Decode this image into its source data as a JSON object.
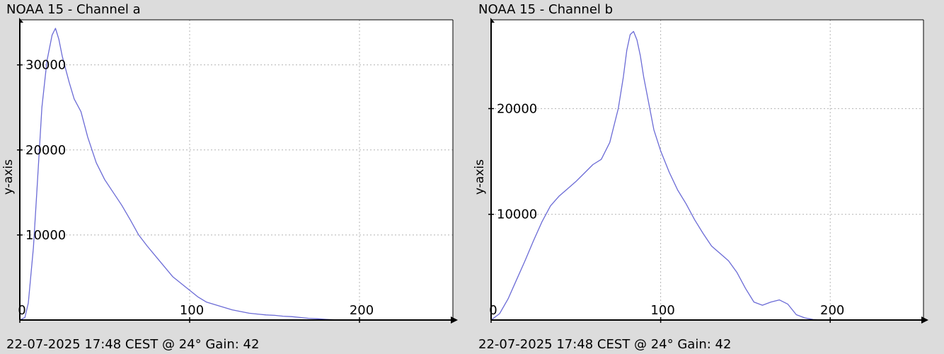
{
  "colors": {
    "background": "#dcdcdc",
    "plot_background": "#ffffff",
    "series": "#6b6bd6",
    "grid": "#b4b4b4",
    "axis": "#000000"
  },
  "chart_data": [
    {
      "type": "line",
      "title": "NOAA 15 - Channel a",
      "footer": "22-07-2025 17:48 CEST @ 24° Gain: 42",
      "ylabel": "y-axis",
      "xlabel": "",
      "xlim": [
        0,
        255
      ],
      "ylim": [
        0,
        35300
      ],
      "xticks": [
        0,
        100,
        200
      ],
      "yticks": [
        10000,
        20000,
        30000
      ],
      "grid": true,
      "series": [
        {
          "x": [
            0,
            3,
            5,
            8,
            10,
            13,
            16,
            19,
            21,
            23,
            25,
            27,
            29,
            32,
            36,
            40,
            45,
            50,
            55,
            60,
            65,
            70,
            75,
            80,
            85,
            90,
            95,
            100,
            105,
            110,
            115,
            120,
            125,
            130,
            135,
            140,
            145,
            150,
            155,
            160,
            165,
            170,
            175,
            180,
            185
          ],
          "y": [
            0,
            300,
            2000,
            8500,
            15000,
            25000,
            30500,
            33500,
            34300,
            33000,
            31000,
            29500,
            28000,
            26000,
            24500,
            21500,
            18500,
            16500,
            15000,
            13500,
            11800,
            10000,
            8700,
            7500,
            6300,
            5100,
            4300,
            3500,
            2700,
            2100,
            1800,
            1500,
            1200,
            1000,
            800,
            700,
            600,
            550,
            450,
            400,
            300,
            200,
            150,
            80,
            30
          ]
        }
      ]
    },
    {
      "type": "line",
      "title": "NOAA 15 - Channel b",
      "footer": "22-07-2025 17:48 CEST @ 24° Gain: 42",
      "ylabel": "y-axis",
      "xlabel": "",
      "xlim": [
        0,
        255
      ],
      "ylim": [
        0,
        28400
      ],
      "xticks": [
        0,
        100,
        200
      ],
      "yticks": [
        10000,
        20000
      ],
      "grid": true,
      "series": [
        {
          "x": [
            0,
            5,
            10,
            15,
            20,
            25,
            30,
            35,
            40,
            45,
            50,
            55,
            60,
            65,
            70,
            75,
            78,
            80,
            82,
            84,
            86,
            88,
            90,
            93,
            96,
            100,
            105,
            110,
            115,
            120,
            125,
            130,
            135,
            140,
            145,
            150,
            155,
            160,
            165,
            170,
            175,
            180,
            185,
            190,
            195
          ],
          "y": [
            0,
            600,
            2000,
            3800,
            5600,
            7500,
            9300,
            10800,
            11700,
            12400,
            13100,
            13900,
            14700,
            15200,
            16800,
            20000,
            23000,
            25500,
            27000,
            27300,
            26500,
            25000,
            23000,
            20500,
            18000,
            16000,
            14000,
            12300,
            11000,
            9500,
            8200,
            7000,
            6300,
            5600,
            4500,
            3000,
            1700,
            1400,
            1700,
            1900,
            1500,
            500,
            200,
            50,
            0
          ]
        }
      ]
    }
  ]
}
